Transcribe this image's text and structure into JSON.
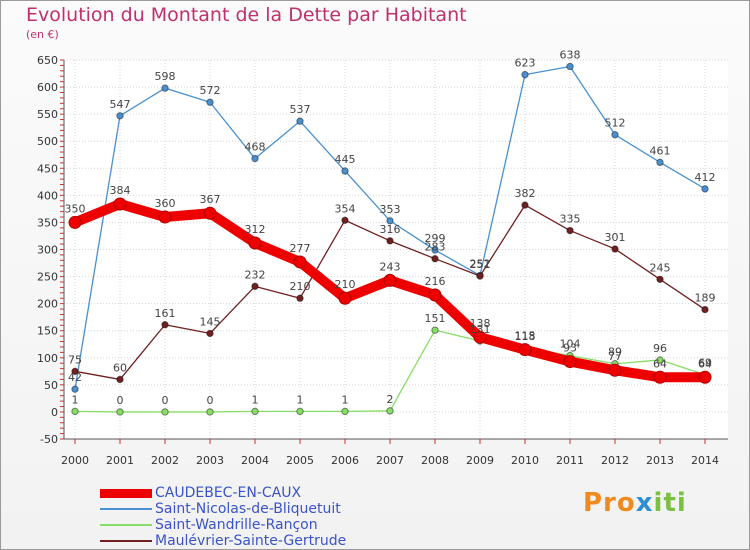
{
  "chart_data": {
    "type": "line",
    "title": "Evolution du Montant de la Dette par Habitant",
    "subtitle": "(en €)",
    "x": [
      "2000",
      "2001",
      "2002",
      "2003",
      "2004",
      "2005",
      "2006",
      "2007",
      "2008",
      "2009",
      "2010",
      "2011",
      "2012",
      "2013",
      "2014"
    ],
    "ylim": [
      -50,
      650
    ],
    "yticks": [
      -50,
      0,
      50,
      100,
      150,
      200,
      250,
      300,
      350,
      400,
      450,
      500,
      550,
      600,
      650
    ],
    "grid": true,
    "legend_position": "bottom-left",
    "series": [
      {
        "name": "CAUDEBEC-EN-CAUX",
        "color": "#ee0000",
        "values": [
          350,
          384,
          360,
          367,
          312,
          277,
          210,
          243,
          216,
          138,
          115,
          93,
          77,
          64,
          64
        ]
      },
      {
        "name": "Saint-Nicolas-de-Bliquetuit",
        "color": "#4a90d0",
        "values": [
          42,
          547,
          598,
          572,
          468,
          537,
          445,
          353,
          299,
          252,
          623,
          638,
          512,
          461,
          412
        ]
      },
      {
        "name": "Saint-Wandrille-Rançon",
        "color": "#88dd66",
        "values": [
          1,
          0,
          0,
          0,
          1,
          1,
          1,
          2,
          151,
          131,
          118,
          104,
          89,
          96,
          69
        ]
      },
      {
        "name": "Maulévrier-Sainte-Gertrude",
        "color": "#702020",
        "values": [
          75,
          60,
          161,
          145,
          232,
          210,
          354,
          316,
          283,
          251,
          382,
          335,
          301,
          245,
          189
        ]
      }
    ]
  },
  "legend": {
    "items": [
      {
        "label": "CAUDEBEC-EN-CAUX"
      },
      {
        "label": "Saint-Nicolas-de-Bliquetuit"
      },
      {
        "label": "Saint-Wandrille-Rançon"
      },
      {
        "label": "Maulévrier-Sainte-Gertrude"
      }
    ]
  },
  "logo": {
    "part1": "Pro",
    "part2": "x",
    "part3": "iti"
  }
}
